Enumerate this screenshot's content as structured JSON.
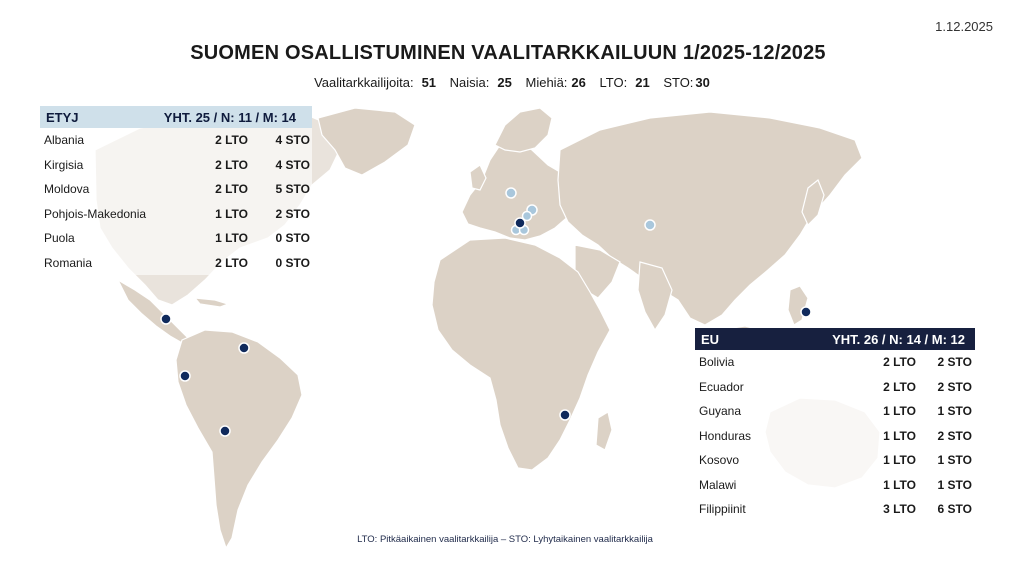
{
  "date": "1.12.2025",
  "title": "SUOMEN OSALLISTUMINEN VAALITARKKAILUUN 1/2025-12/2025",
  "stats": [
    {
      "label": "Vaalitarkkailijoita:",
      "value": "51"
    },
    {
      "label": "Naisia:",
      "value": "25"
    },
    {
      "label": "Miehiä:",
      "value": "26"
    },
    {
      "label": "LTO:",
      "value": "21"
    },
    {
      "label": "STO:",
      "value": "30"
    }
  ],
  "etyj": {
    "name": "ETYJ",
    "summary": "YHT. 25 / N: 11 / M: 14",
    "rows": [
      {
        "country": "Albania",
        "lto": "2 LTO",
        "sto": "4 STO"
      },
      {
        "country": "Kirgisia",
        "lto": "2 LTO",
        "sto": "4 STO"
      },
      {
        "country": "Moldova",
        "lto": "2 LTO",
        "sto": "5 STO"
      },
      {
        "country": "Pohjois-Makedonia",
        "lto": "1 LTO",
        "sto": "2 STO"
      },
      {
        "country": "Puola",
        "lto": "1 LTO",
        "sto": "0 STO"
      },
      {
        "country": "Romania",
        "lto": "2 LTO",
        "sto": "0 STO"
      }
    ]
  },
  "eu": {
    "name": "EU",
    "summary": "YHT. 26 / N: 14 / M: 12",
    "rows": [
      {
        "country": "Bolivia",
        "lto": "2 LTO",
        "sto": "2 STO"
      },
      {
        "country": "Ecuador",
        "lto": "2 LTO",
        "sto": "2 STO"
      },
      {
        "country": "Guyana",
        "lto": "1 LTO",
        "sto": "1 STO"
      },
      {
        "country": "Honduras",
        "lto": "1 LTO",
        "sto": "2 STO"
      },
      {
        "country": "Kosovo",
        "lto": "1 LTO",
        "sto": "1 STO"
      },
      {
        "country": "Malawi",
        "lto": "1 LTO",
        "sto": "1 STO"
      },
      {
        "country": "Filippiinit",
        "lto": "3 LTO",
        "sto": "6 STO"
      }
    ]
  },
  "footnote": "LTO: Pitkäaikainen vaalitarkkailija – STO: Lyhytaikainen vaalitarkkailija",
  "colors": {
    "etyj_header": "#cfe0ea",
    "eu_header": "#17203f",
    "land": "#dcd2c6",
    "eu_marker": "#102a5c",
    "etyj_marker": "#a9c7dc"
  }
}
